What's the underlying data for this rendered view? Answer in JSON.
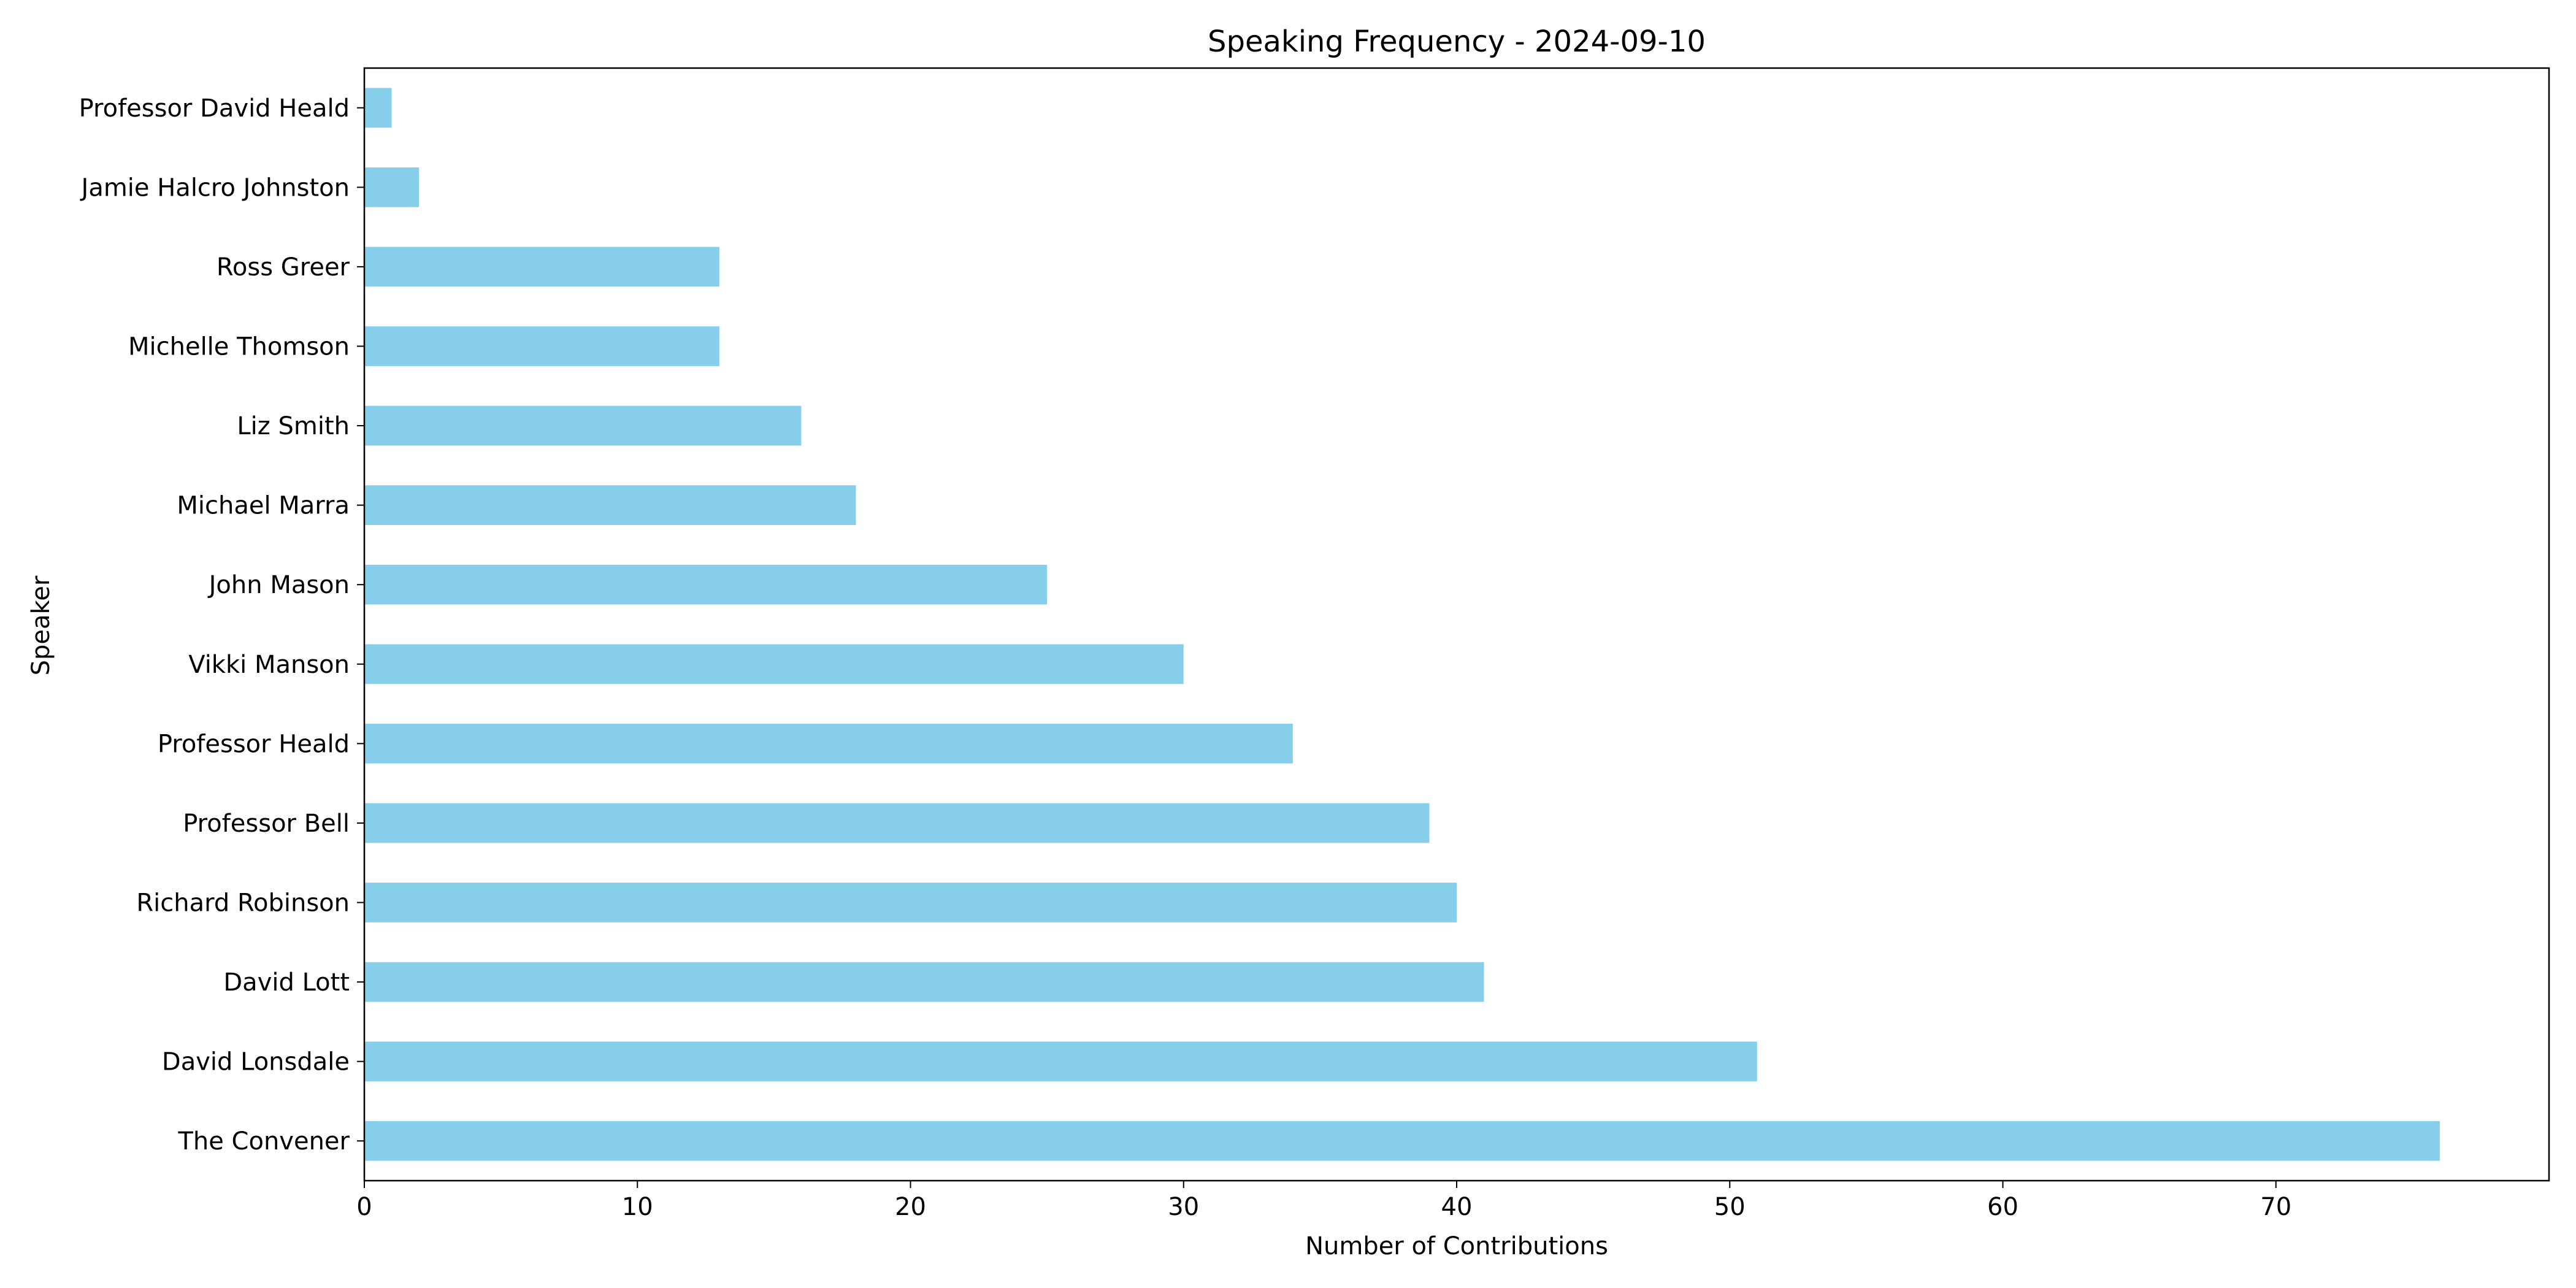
{
  "chart_data": {
    "type": "bar",
    "orientation": "horizontal",
    "title": "Speaking Frequency - 2024-09-10",
    "xlabel": "Number of Contributions",
    "ylabel": "Speaker",
    "xlim": [
      0,
      80
    ],
    "xticks": [
      0,
      10,
      20,
      30,
      40,
      50,
      60,
      70
    ],
    "grid": false,
    "bar_color": "#87CEEB",
    "categories": [
      "The Convener",
      "David Lonsdale",
      "David Lott",
      "Richard Robinson",
      "Professor Bell",
      "Professor Heald",
      "Vikki Manson",
      "John Mason",
      "Michael Marra",
      "Liz Smith",
      "Michelle Thomson",
      "Ross Greer",
      "Jamie Halcro Johnston",
      "Professor David Heald"
    ],
    "values": [
      76,
      51,
      41,
      40,
      39,
      34,
      30,
      25,
      18,
      16,
      13,
      13,
      2,
      1
    ]
  }
}
